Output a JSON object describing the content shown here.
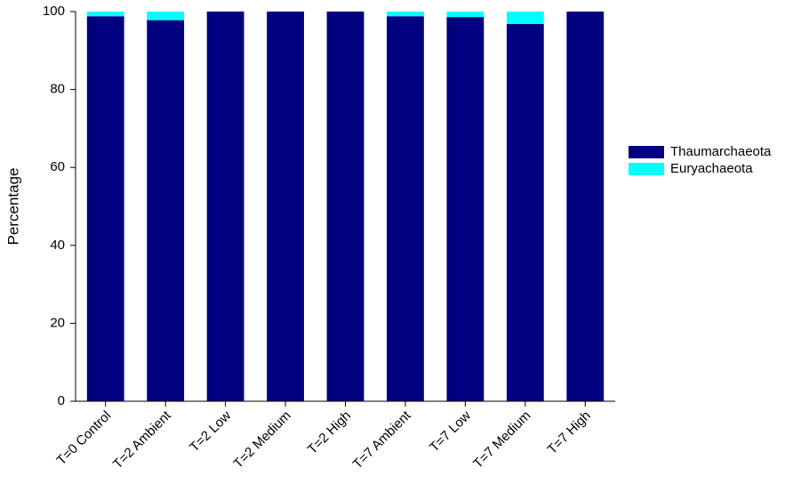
{
  "chart_data": {
    "type": "stacked_bar",
    "y_label": "Percentage",
    "categories": [
      "T=0 Control",
      "T=2 Ambient",
      "T=2 Low",
      "T=2 Medium",
      "T=2 High",
      "T=7 Ambient",
      "T=7 Low",
      "T=7 Medium",
      "T=7 High"
    ],
    "series": [
      {
        "name": "Thaumarchaeota",
        "color": "#000080",
        "values": [
          98.8,
          97.8,
          100,
          100,
          100,
          98.8,
          98.6,
          96.8,
          100
        ]
      },
      {
        "name": "Euryachaeota",
        "color": "#00ffff",
        "values": [
          1.2,
          2.2,
          0,
          0,
          0,
          1.2,
          1.4,
          3.2,
          0
        ]
      }
    ],
    "ylim": [
      0,
      100
    ],
    "yticks": [
      0,
      20,
      40,
      60,
      80,
      100
    ],
    "legend": "right"
  }
}
